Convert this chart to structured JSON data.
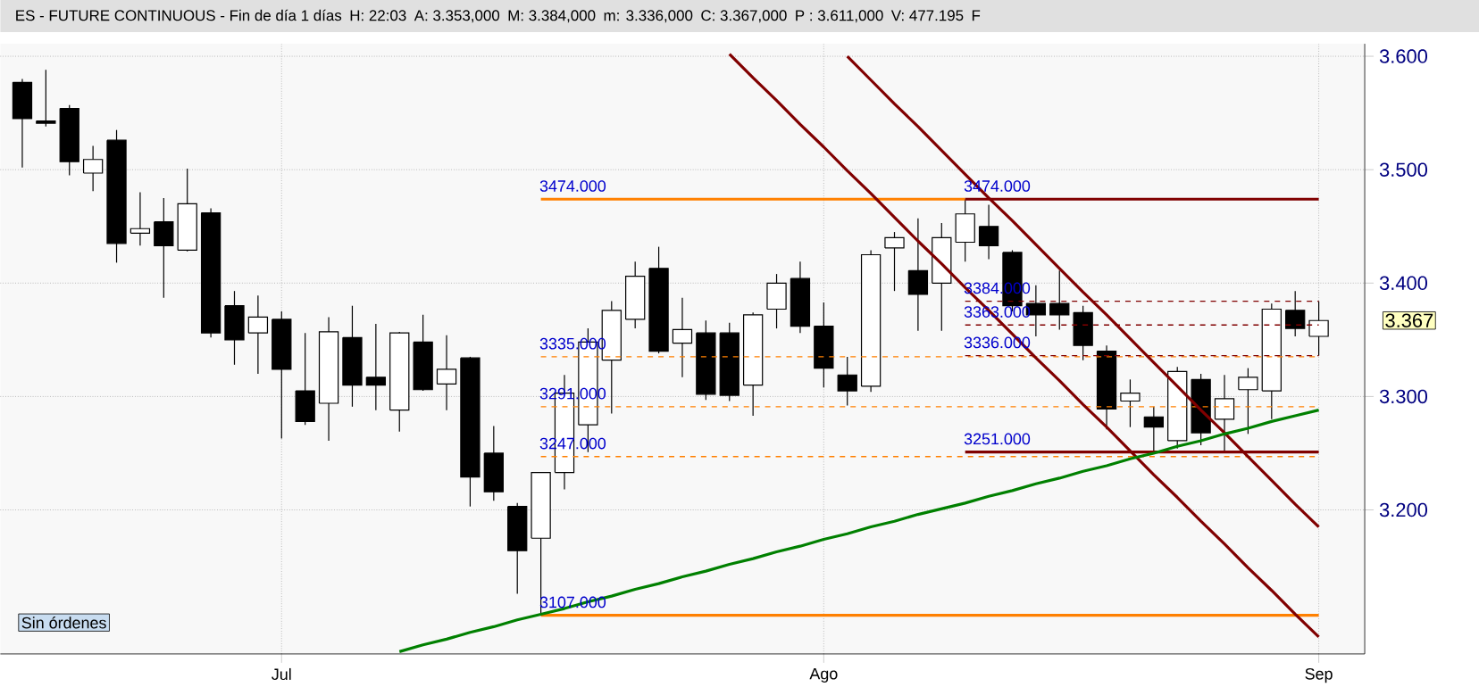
{
  "chart_data": {
    "type": "candlestick",
    "title": "ES - FUTURE CONTINUOUS - Fin de día 1 días",
    "categories": [
      null,
      null,
      null,
      null,
      null,
      null,
      null,
      null,
      null,
      null,
      null,
      "Jul",
      null,
      null,
      null,
      null,
      null,
      null,
      null,
      null,
      null,
      null,
      null,
      null,
      null,
      null,
      null,
      null,
      null,
      null,
      null,
      null,
      null,
      null,
      "Ago",
      null,
      null,
      null,
      null,
      null,
      null,
      null,
      null,
      null,
      null,
      null,
      null,
      null,
      null,
      null,
      null,
      null,
      null,
      null,
      null,
      "Sep"
    ],
    "ohlc": [
      [
        3577,
        3580,
        3502,
        3545
      ],
      [
        3543,
        3588,
        3538,
        3541
      ],
      [
        3554,
        3557,
        3495,
        3507
      ],
      [
        3497,
        3521,
        3481,
        3509
      ],
      [
        3526,
        3535,
        3418,
        3435
      ],
      [
        3444,
        3480,
        3433,
        3448
      ],
      [
        3454,
        3475,
        3387,
        3433
      ],
      [
        3429,
        3501,
        3428,
        3470
      ],
      [
        3462,
        3466,
        3352,
        3356
      ],
      [
        3380,
        3393,
        3328,
        3350
      ],
      [
        3356,
        3389,
        3320,
        3370
      ],
      [
        3368,
        3375,
        3263,
        3324
      ],
      [
        3305,
        3356,
        3275,
        3278
      ],
      [
        3294,
        3370,
        3261,
        3357
      ],
      [
        3352,
        3380,
        3291,
        3310
      ],
      [
        3317,
        3364,
        3288,
        3310
      ],
      [
        3288,
        3357,
        3269,
        3356
      ],
      [
        3348,
        3372,
        3305,
        3306
      ],
      [
        3311,
        3354,
        3288,
        3324
      ],
      [
        3334,
        3335,
        3203,
        3229
      ],
      [
        3250,
        3274,
        3208,
        3216
      ],
      [
        3203,
        3206,
        3126,
        3164
      ],
      [
        3175,
        3233,
        3107,
        3233
      ],
      [
        3233,
        3319,
        3218,
        3303
      ],
      [
        3275,
        3360,
        3251,
        3348
      ],
      [
        3332,
        3384,
        3285,
        3376
      ],
      [
        3368,
        3419,
        3360,
        3406
      ],
      [
        3413,
        3432,
        3338,
        3340
      ],
      [
        3347,
        3387,
        3317,
        3359
      ],
      [
        3356,
        3367,
        3297,
        3302
      ],
      [
        3356,
        3365,
        3296,
        3301
      ],
      [
        3310,
        3374,
        3283,
        3372
      ],
      [
        3377,
        3408,
        3360,
        3400
      ],
      [
        3404,
        3419,
        3356,
        3362
      ],
      [
        3362,
        3383,
        3308,
        3325
      ],
      [
        3319,
        3335,
        3292,
        3305
      ],
      [
        3309,
        3429,
        3304,
        3425
      ],
      [
        3431,
        3445,
        3393,
        3440
      ],
      [
        3411,
        3457,
        3358,
        3390
      ],
      [
        3400,
        3453,
        3358,
        3440
      ],
      [
        3436,
        3474,
        3419,
        3461
      ],
      [
        3450,
        3469,
        3421,
        3433
      ],
      [
        3427,
        3429,
        3375,
        3380
      ],
      [
        3382,
        3398,
        3353,
        3372
      ],
      [
        3382,
        3411,
        3359,
        3372
      ],
      [
        3374,
        3380,
        3332,
        3345
      ],
      [
        3340,
        3345,
        3271,
        3289
      ],
      [
        3296,
        3315,
        3273,
        3303
      ],
      [
        3282,
        3291,
        3252,
        3273
      ],
      [
        3261,
        3326,
        3254,
        3322
      ],
      [
        3315,
        3320,
        3257,
        3268
      ],
      [
        3280,
        3319,
        3251,
        3298
      ],
      [
        3306,
        3325,
        3267,
        3317
      ],
      [
        3305,
        3382,
        3280,
        3377
      ],
      [
        3376,
        3393,
        3353,
        3360
      ],
      [
        3353,
        3384,
        3336,
        3367
      ]
    ],
    "series": [
      {
        "type": "line",
        "name": "3474.000",
        "color": "#ff8000",
        "line_style": "solid",
        "values": [
          null,
          null,
          null,
          null,
          null,
          null,
          null,
          null,
          null,
          null,
          null,
          null,
          null,
          null,
          null,
          null,
          null,
          null,
          null,
          null,
          null,
          null,
          3474,
          3474,
          3474,
          3474,
          3474,
          3474,
          3474,
          3474,
          3474,
          3474,
          3474,
          3474,
          3474,
          3474,
          3474,
          3474,
          3474,
          3474,
          3474,
          null,
          null,
          null,
          null,
          null,
          null,
          null,
          null,
          null,
          null,
          null,
          null,
          null,
          null,
          null
        ]
      },
      {
        "type": "line",
        "name": "3335.000",
        "color": "#ff8000",
        "line_style": "dashed",
        "values": [
          null,
          null,
          null,
          null,
          null,
          null,
          null,
          null,
          null,
          null,
          null,
          null,
          null,
          null,
          null,
          null,
          null,
          null,
          null,
          null,
          null,
          null,
          3335,
          3335,
          3335,
          3335,
          3335,
          3335,
          3335,
          3335,
          3335,
          3335,
          3335,
          3335,
          3335,
          3335,
          3335,
          3335,
          3335,
          3335,
          3335,
          3335,
          3335,
          3335,
          3335,
          3335,
          3335,
          3335,
          3335,
          3335,
          3335,
          3335,
          3335,
          3335,
          3335,
          3335
        ]
      },
      {
        "type": "line",
        "name": "3291.000",
        "color": "#ff8000",
        "line_style": "dashed",
        "values": [
          null,
          null,
          null,
          null,
          null,
          null,
          null,
          null,
          null,
          null,
          null,
          null,
          null,
          null,
          null,
          null,
          null,
          null,
          null,
          null,
          null,
          null,
          3291,
          3291,
          3291,
          3291,
          3291,
          3291,
          3291,
          3291,
          3291,
          3291,
          3291,
          3291,
          3291,
          3291,
          3291,
          3291,
          3291,
          3291,
          3291,
          3291,
          3291,
          3291,
          3291,
          3291,
          3291,
          3291,
          3291,
          3291,
          3291,
          3291,
          3291,
          3291,
          3291,
          3291
        ]
      },
      {
        "type": "line",
        "name": "3247.000",
        "color": "#ff8000",
        "line_style": "dashed",
        "values": [
          null,
          null,
          null,
          null,
          null,
          null,
          null,
          null,
          null,
          null,
          null,
          null,
          null,
          null,
          null,
          null,
          null,
          null,
          null,
          null,
          null,
          null,
          3247,
          3247,
          3247,
          3247,
          3247,
          3247,
          3247,
          3247,
          3247,
          3247,
          3247,
          3247,
          3247,
          3247,
          3247,
          3247,
          3247,
          3247,
          3247,
          3247,
          3247,
          3247,
          3247,
          3247,
          3247,
          3247,
          3247,
          3247,
          3247,
          3247,
          3247,
          3247,
          3247,
          3247
        ]
      },
      {
        "type": "line",
        "name": "3107.000",
        "color": "#ff8000",
        "line_style": "solid",
        "values": [
          null,
          null,
          null,
          null,
          null,
          null,
          null,
          null,
          null,
          null,
          null,
          null,
          null,
          null,
          null,
          null,
          null,
          null,
          null,
          null,
          null,
          null,
          3107,
          3107,
          3107,
          3107,
          3107,
          3107,
          3107,
          3107,
          3107,
          3107,
          3107,
          3107,
          3107,
          3107,
          3107,
          3107,
          3107,
          3107,
          3107,
          3107,
          3107,
          3107,
          3107,
          3107,
          3107,
          3107,
          3107,
          3107,
          3107,
          3107,
          3107,
          3107,
          3107,
          3107
        ]
      },
      {
        "type": "line",
        "name": "3474.000",
        "color": "#800000",
        "line_style": "solid",
        "values": [
          null,
          null,
          null,
          null,
          null,
          null,
          null,
          null,
          null,
          null,
          null,
          null,
          null,
          null,
          null,
          null,
          null,
          null,
          null,
          null,
          null,
          null,
          null,
          null,
          null,
          null,
          null,
          null,
          null,
          null,
          null,
          null,
          null,
          null,
          null,
          null,
          null,
          null,
          null,
          null,
          3474,
          3474,
          3474,
          3474,
          3474,
          3474,
          3474,
          3474,
          3474,
          3474,
          3474,
          3474,
          3474,
          3474,
          3474,
          3474
        ]
      },
      {
        "type": "line",
        "name": "3384.000",
        "color": "#800000",
        "line_style": "dashed",
        "values": [
          null,
          null,
          null,
          null,
          null,
          null,
          null,
          null,
          null,
          null,
          null,
          null,
          null,
          null,
          null,
          null,
          null,
          null,
          null,
          null,
          null,
          null,
          null,
          null,
          null,
          null,
          null,
          null,
          null,
          null,
          null,
          null,
          null,
          null,
          null,
          null,
          null,
          null,
          null,
          null,
          3384,
          3384,
          3384,
          3384,
          3384,
          3384,
          3384,
          3384,
          3384,
          3384,
          3384,
          3384,
          3384,
          3384,
          3384,
          3384
        ]
      },
      {
        "type": "line",
        "name": "3363.000",
        "color": "#800000",
        "line_style": "dashed",
        "values": [
          null,
          null,
          null,
          null,
          null,
          null,
          null,
          null,
          null,
          null,
          null,
          null,
          null,
          null,
          null,
          null,
          null,
          null,
          null,
          null,
          null,
          null,
          null,
          null,
          null,
          null,
          null,
          null,
          null,
          null,
          null,
          null,
          null,
          null,
          null,
          null,
          null,
          null,
          null,
          null,
          3363,
          3363,
          3363,
          3363,
          3363,
          3363,
          3363,
          3363,
          3363,
          3363,
          3363,
          3363,
          3363,
          3363,
          3363,
          3363
        ]
      },
      {
        "type": "line",
        "name": "3336.000",
        "color": "#800000",
        "line_style": "dashed",
        "values": [
          null,
          null,
          null,
          null,
          null,
          null,
          null,
          null,
          null,
          null,
          null,
          null,
          null,
          null,
          null,
          null,
          null,
          null,
          null,
          null,
          null,
          null,
          null,
          null,
          null,
          null,
          null,
          null,
          null,
          null,
          null,
          null,
          null,
          null,
          null,
          null,
          null,
          null,
          null,
          null,
          3336,
          3336,
          3336,
          3336,
          3336,
          3336,
          3336,
          3336,
          3336,
          3336,
          3336,
          3336,
          3336,
          3336,
          3336,
          3336
        ]
      },
      {
        "type": "line",
        "name": "3251.000",
        "color": "#800000",
        "line_style": "solid",
        "values": [
          null,
          null,
          null,
          null,
          null,
          null,
          null,
          null,
          null,
          null,
          null,
          null,
          null,
          null,
          null,
          null,
          null,
          null,
          null,
          null,
          null,
          null,
          null,
          null,
          null,
          null,
          null,
          null,
          null,
          null,
          null,
          null,
          null,
          null,
          null,
          null,
          null,
          null,
          null,
          null,
          3251,
          3251,
          3251,
          3251,
          3251,
          3251,
          3251,
          3251,
          3251,
          3251,
          3251,
          3251,
          3251,
          3251,
          3251,
          3251
        ]
      },
      {
        "type": "line",
        "color": "#800000",
        "line_style": "solid",
        "values": [
          null,
          null,
          null,
          null,
          null,
          null,
          null,
          null,
          null,
          null,
          null,
          null,
          null,
          null,
          null,
          null,
          null,
          null,
          null,
          null,
          null,
          null,
          null,
          null,
          null,
          null,
          null,
          null,
          null,
          null,
          3602,
          3581,
          3561,
          3540,
          3520,
          3499,
          3479,
          3458,
          3437,
          3417,
          3396,
          3376,
          3355,
          3334,
          3314,
          3293,
          3273,
          3252,
          3231,
          3211,
          3190,
          3170,
          3149,
          3129,
          3108,
          3088
        ]
      },
      {
        "type": "line",
        "color": "#800000",
        "line_style": "solid",
        "values": [
          null,
          null,
          null,
          null,
          null,
          null,
          null,
          null,
          null,
          null,
          null,
          null,
          null,
          null,
          null,
          null,
          null,
          null,
          null,
          null,
          null,
          null,
          null,
          null,
          null,
          null,
          null,
          null,
          null,
          null,
          null,
          null,
          null,
          null,
          null,
          3600,
          3579,
          3558,
          3538,
          3517,
          3496,
          3475,
          3455,
          3434,
          3413,
          3392,
          3372,
          3351,
          3330,
          3309,
          3288,
          3268,
          3247,
          3226,
          3205,
          3185
        ]
      },
      {
        "type": "line",
        "color": "#008000",
        "line_style": "solid",
        "values": [
          null,
          null,
          null,
          null,
          null,
          null,
          null,
          null,
          null,
          null,
          null,
          null,
          null,
          null,
          null,
          null,
          3075,
          3081,
          3086,
          3092,
          3097,
          3103,
          3108,
          3113,
          3119,
          3124,
          3130,
          3135,
          3141,
          3146,
          3152,
          3157,
          3163,
          3168,
          3174,
          3179,
          3185,
          3190,
          3196,
          3201,
          3206,
          3212,
          3217,
          3223,
          3228,
          3234,
          3239,
          3245,
          3250,
          3256,
          3261,
          3267,
          3272,
          3278,
          3283,
          3288
        ]
      }
    ],
    "ylim": [
      3073,
      3611
    ],
    "yticks": [
      {
        "value": 3200,
        "label": "3.200"
      },
      {
        "value": 3300,
        "label": "3.300"
      },
      {
        "value": 3400,
        "label": "3.400"
      },
      {
        "value": 3500,
        "label": "3.500"
      },
      {
        "value": 3600,
        "label": "3.600"
      }
    ],
    "grid": true,
    "annotations": [
      "H: 22:03",
      "A: 3.353,000",
      "M: 3.384,000",
      "m: 3.336,000",
      "C: 3.367,000",
      "P : 3.611,000",
      "V: 477.195",
      "F",
      "3.367",
      "Sin órdenes"
    ]
  }
}
